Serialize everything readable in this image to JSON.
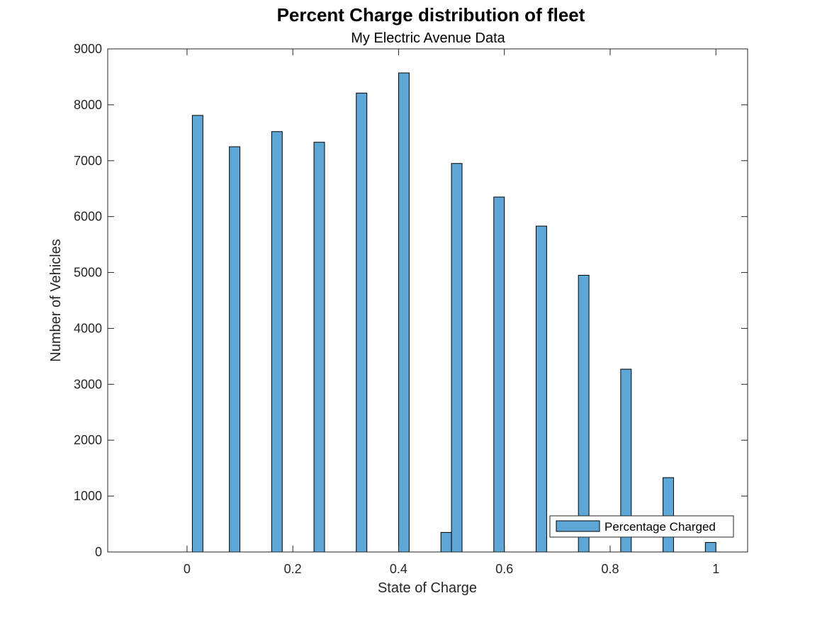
{
  "chart_data": {
    "type": "bar",
    "title": "Percent Charge distribution of fleet",
    "subtitle": "My Electric Avenue Data",
    "xlabel": "State of Charge",
    "ylabel": "Number of Vehicles",
    "xlim": [
      -0.15,
      1.06
    ],
    "ylim": [
      0,
      9000
    ],
    "xticks": [
      0,
      0.2,
      0.4,
      0.6,
      0.8,
      1
    ],
    "xtick_labels": [
      "0",
      "0.2",
      "0.4",
      "0.6",
      "0.8",
      "1"
    ],
    "yticks": [
      0,
      1000,
      2000,
      3000,
      4000,
      5000,
      6000,
      7000,
      8000,
      9000
    ],
    "ytick_labels": [
      "0",
      "1000",
      "2000",
      "3000",
      "4000",
      "5000",
      "6000",
      "7000",
      "8000",
      "9000"
    ],
    "bar_width": 0.02,
    "grid": false,
    "legend": {
      "location": "bottom-right",
      "entries": [
        "Percentage Charged"
      ]
    },
    "series": [
      {
        "name": "Percentage Charged",
        "color": "#5ea6d6",
        "edge_color": "#000000",
        "x": [
          -0.09,
          -0.05,
          0.02,
          0.09,
          0.17,
          0.25,
          0.33,
          0.41,
          0.49,
          0.51,
          0.59,
          0.67,
          0.75,
          0.83,
          0.91,
          0.99
        ],
        "values": [
          0,
          0,
          7810,
          7250,
          7520,
          7330,
          8210,
          8570,
          350,
          6950,
          6350,
          5830,
          4950,
          3270,
          1330,
          170
        ]
      }
    ]
  }
}
